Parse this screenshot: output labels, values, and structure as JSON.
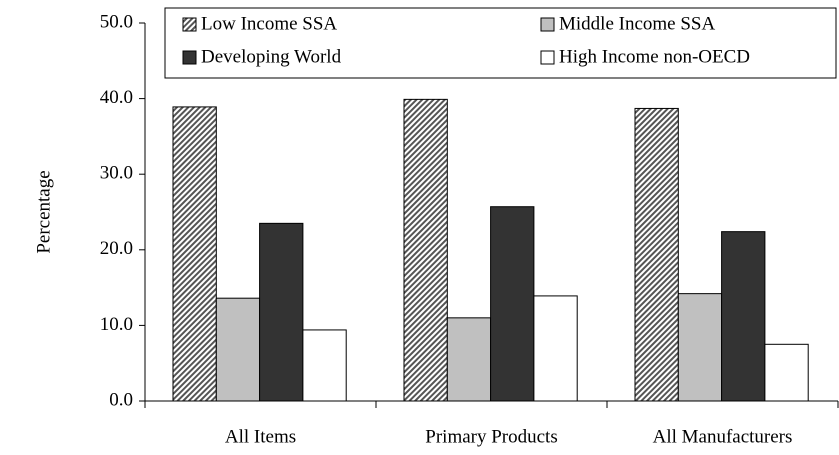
{
  "chart_data": {
    "type": "bar",
    "y_label": "Percentage",
    "categories": [
      "All Items",
      "Primary Products",
      "All Manufacturers"
    ],
    "series": [
      {
        "name": "Low Income SSA",
        "color": "#555555",
        "pattern": "diagonal-hatch",
        "values": [
          38.9,
          39.9,
          38.7
        ]
      },
      {
        "name": "Middle Income SSA",
        "color": "#c0c0c0",
        "values": [
          13.6,
          11.0,
          14.2
        ]
      },
      {
        "name": "Developing World",
        "color": "#333333",
        "values": [
          23.5,
          25.7,
          22.4
        ]
      },
      {
        "name": "High Income non-OECD",
        "color": "#ffffff",
        "values": [
          9.4,
          13.9,
          7.5
        ]
      }
    ],
    "ylim": [
      0,
      50
    ],
    "yticks": [
      {
        "value": 0,
        "label": "0.0"
      },
      {
        "value": 10,
        "label": "10.0"
      },
      {
        "value": 20,
        "label": "20.0"
      },
      {
        "value": 30,
        "label": "30.0"
      },
      {
        "value": 40,
        "label": "40.0"
      },
      {
        "value": 50,
        "label": "50.0"
      }
    ],
    "grid": false,
    "legend": "top"
  }
}
